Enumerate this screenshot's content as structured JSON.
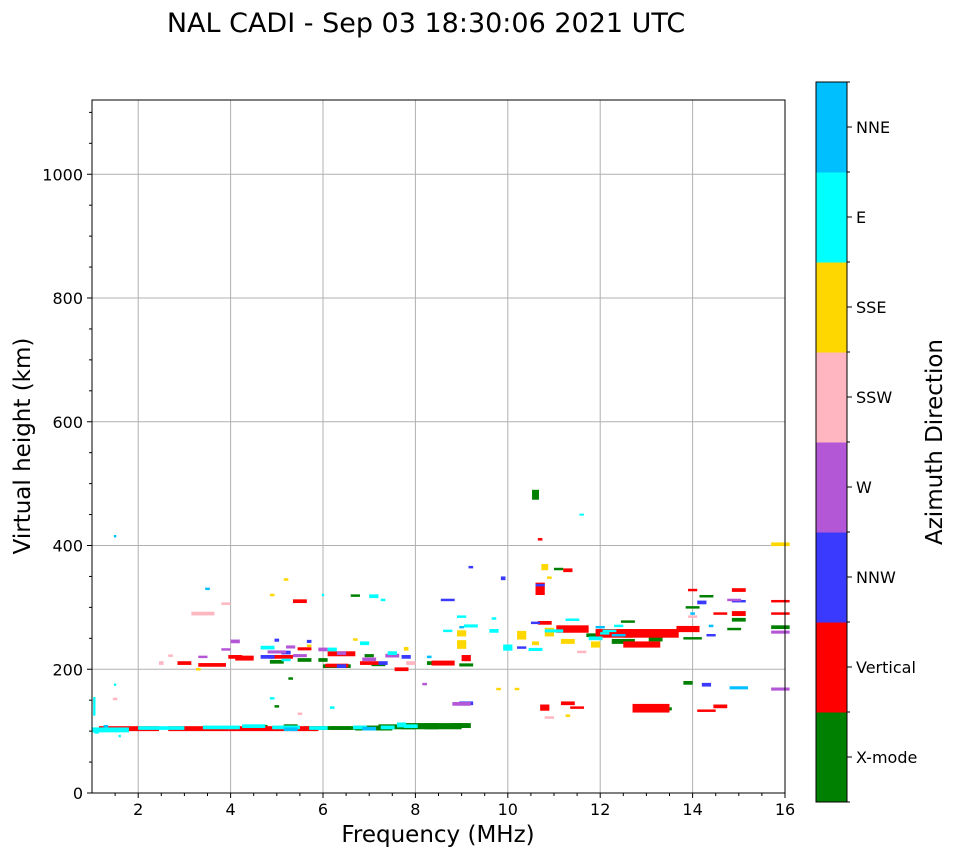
{
  "chart_data": {
    "type": "scatter",
    "title": "NAL CADI - Sep 03 18:30:06 2021 UTC",
    "xlabel": "Frequency (MHz)",
    "ylabel": "Virtual height (km)",
    "xlim": [
      1,
      16
    ],
    "ylim": [
      0,
      1120
    ],
    "xticks": [
      2,
      4,
      6,
      8,
      10,
      12,
      14,
      16
    ],
    "yticks": [
      0,
      200,
      400,
      600,
      800,
      1000
    ],
    "grid": true,
    "colorbar": {
      "label": "Azimuth Direction",
      "categories": [
        "X-mode",
        "Vertical",
        "NNW",
        "W",
        "SSW",
        "SSE",
        "E",
        "NNE"
      ],
      "colors": [
        "#008000",
        "#ff0000",
        "#3a3aff",
        "#b457d6",
        "#ffb6c1",
        "#ffd700",
        "#00ffff",
        "#00bfff"
      ]
    },
    "series": [
      {
        "name": "X-mode",
        "points": [
          [
            6.1,
            105,
            1.0,
            6
          ],
          [
            6.6,
            105,
            0.9,
            6
          ],
          [
            7.1,
            105,
            0.8,
            8
          ],
          [
            7.6,
            107,
            0.8,
            8
          ],
          [
            8.1,
            108,
            0.8,
            10
          ],
          [
            8.6,
            108,
            0.8,
            10
          ],
          [
            9.0,
            109,
            0.4,
            8
          ],
          [
            4.6,
            107,
            0.4,
            6
          ],
          [
            5.3,
            108,
            0.3,
            6
          ],
          [
            5.0,
            212,
            0.3,
            6
          ],
          [
            5.6,
            215,
            0.3,
            6
          ],
          [
            6.3,
            205,
            0.6,
            6
          ],
          [
            7.2,
            208,
            0.3,
            6
          ],
          [
            7.0,
            222,
            0.2,
            5
          ],
          [
            6.0,
            215,
            0.2,
            6
          ],
          [
            6.7,
            319,
            0.2,
            4
          ],
          [
            5.3,
            185,
            0.1,
            4
          ],
          [
            5.0,
            140,
            0.1,
            4
          ],
          [
            10.6,
            482,
            0.15,
            16
          ],
          [
            11.1,
            362,
            0.2,
            4
          ],
          [
            8.5,
            210,
            0.5,
            6
          ],
          [
            9.1,
            207,
            0.3,
            5
          ],
          [
            12.5,
            245,
            0.5,
            8
          ],
          [
            13.2,
            250,
            0.3,
            10
          ],
          [
            13.9,
            178,
            0.2,
            6
          ],
          [
            14.3,
            318,
            0.3,
            4
          ],
          [
            14.0,
            300,
            0.3,
            4
          ],
          [
            15.0,
            280,
            0.3,
            6
          ],
          [
            15.9,
            268,
            0.4,
            6
          ],
          [
            14.0,
            250,
            0.4,
            4
          ],
          [
            14.9,
            265,
            0.3,
            4
          ],
          [
            13.4,
            136,
            0.3,
            5
          ],
          [
            12.6,
            277,
            0.3,
            4
          ],
          [
            11.9,
            255,
            0.4,
            6
          ]
        ]
      },
      {
        "name": "Vertical",
        "points": [
          [
            1.8,
            104,
            1.3,
            8
          ],
          [
            3.3,
            104,
            1.3,
            8
          ],
          [
            4.6,
            104,
            1.3,
            8
          ],
          [
            5.6,
            104,
            0.6,
            8
          ],
          [
            3.6,
            207,
            0.6,
            6
          ],
          [
            4.3,
            218,
            0.4,
            8
          ],
          [
            5.1,
            220,
            0.5,
            6
          ],
          [
            6.4,
            225,
            0.6,
            8
          ],
          [
            7.0,
            210,
            0.4,
            6
          ],
          [
            7.7,
            200,
            0.3,
            6
          ],
          [
            5.6,
            233,
            0.3,
            5
          ],
          [
            8.6,
            210,
            0.5,
            8
          ],
          [
            9.1,
            218,
            0.2,
            10
          ],
          [
            10.7,
            330,
            0.2,
            20
          ],
          [
            10.7,
            410,
            0.1,
            4
          ],
          [
            10.8,
            275,
            0.3,
            6
          ],
          [
            11.3,
            360,
            0.2,
            6
          ],
          [
            11.4,
            265,
            0.7,
            12
          ],
          [
            12.3,
            258,
            0.8,
            14
          ],
          [
            13.1,
            258,
            1.2,
            14
          ],
          [
            12.9,
            240,
            0.8,
            10
          ],
          [
            13.9,
            265,
            0.5,
            10
          ],
          [
            14.0,
            328,
            0.2,
            4
          ],
          [
            14.6,
            290,
            0.3,
            4
          ],
          [
            15.0,
            290,
            0.3,
            8
          ],
          [
            15.0,
            328,
            0.3,
            6
          ],
          [
            15.9,
            310,
            0.4,
            4
          ],
          [
            15.9,
            290,
            0.4,
            4
          ],
          [
            10.8,
            138,
            0.2,
            10
          ],
          [
            11.3,
            145,
            0.3,
            6
          ],
          [
            11.5,
            138,
            0.3,
            4
          ],
          [
            13.1,
            137,
            0.8,
            14
          ],
          [
            14.6,
            140,
            0.3,
            6
          ],
          [
            14.3,
            133,
            0.4,
            4
          ],
          [
            5.5,
            310,
            0.3,
            6
          ],
          [
            6.3,
            206,
            0.5,
            6
          ],
          [
            4.1,
            220,
            0.3,
            6
          ],
          [
            3.0,
            210,
            0.3,
            6
          ]
        ]
      },
      {
        "name": "NNW",
        "points": [
          [
            9.2,
            365,
            0.1,
            4
          ],
          [
            9.9,
            347,
            0.1,
            6
          ],
          [
            10.7,
            336,
            0.2,
            4
          ],
          [
            10.3,
            235,
            0.2,
            4
          ],
          [
            10.6,
            275,
            0.2,
            4
          ],
          [
            11.4,
            280,
            0.2,
            4
          ],
          [
            14.3,
            175,
            0.2,
            6
          ],
          [
            14.2,
            308,
            0.2,
            6
          ],
          [
            15.0,
            310,
            0.3,
            4
          ],
          [
            14.4,
            255,
            0.2,
            4
          ],
          [
            8.7,
            312,
            0.3,
            4
          ],
          [
            9.1,
            145,
            0.3,
            6
          ],
          [
            5.2,
            227,
            0.2,
            6
          ],
          [
            4.8,
            220,
            0.3,
            6
          ],
          [
            7.8,
            220,
            0.2,
            6
          ],
          [
            5.0,
            247,
            0.1,
            5
          ],
          [
            5.7,
            245,
            0.1,
            5
          ],
          [
            7.3,
            210,
            0.2,
            6
          ],
          [
            6.4,
            205,
            0.2,
            6
          ]
        ]
      },
      {
        "name": "W",
        "points": [
          [
            3.4,
            220,
            0.2,
            4
          ],
          [
            3.9,
            232,
            0.2,
            4
          ],
          [
            4.1,
            245,
            0.2,
            6
          ],
          [
            5.0,
            228,
            0.4,
            5
          ],
          [
            5.5,
            222,
            0.3,
            5
          ],
          [
            6.0,
            232,
            0.2,
            6
          ],
          [
            6.4,
            226,
            0.2,
            6
          ],
          [
            7.0,
            216,
            0.3,
            6
          ],
          [
            7.5,
            222,
            0.3,
            6
          ],
          [
            8.2,
            176,
            0.1,
            4
          ],
          [
            9.0,
            144,
            0.4,
            6
          ],
          [
            14.9,
            312,
            0.3,
            4
          ],
          [
            15.9,
            260,
            0.4,
            5
          ],
          [
            15.9,
            168,
            0.4,
            5
          ],
          [
            5.3,
            236,
            0.2,
            5
          ]
        ]
      },
      {
        "name": "SSW",
        "points": [
          [
            3.4,
            290,
            0.5,
            6
          ],
          [
            3.9,
            306,
            0.2,
            4
          ],
          [
            2.5,
            210,
            0.1,
            6
          ],
          [
            2.7,
            222,
            0.1,
            4
          ],
          [
            5.5,
            128,
            0.1,
            4
          ],
          [
            7.9,
            210,
            0.2,
            6
          ],
          [
            10.9,
            122,
            0.2,
            4
          ],
          [
            14.0,
            285,
            0.2,
            4
          ],
          [
            11.6,
            228,
            0.2,
            4
          ],
          [
            1.5,
            152,
            0.1,
            4
          ]
        ]
      },
      {
        "name": "SSE",
        "points": [
          [
            9.0,
            240,
            0.2,
            14
          ],
          [
            9.0,
            258,
            0.2,
            10
          ],
          [
            10.3,
            255,
            0.2,
            14
          ],
          [
            10.9,
            260,
            0.2,
            14
          ],
          [
            10.8,
            365,
            0.15,
            10
          ],
          [
            10.6,
            242,
            0.15,
            6
          ],
          [
            11.3,
            245,
            0.3,
            8
          ],
          [
            11.9,
            240,
            0.2,
            10
          ],
          [
            10.9,
            348,
            0.1,
            4
          ],
          [
            10.2,
            168,
            0.1,
            4
          ],
          [
            9.8,
            168,
            0.1,
            4
          ],
          [
            11.3,
            125,
            0.1,
            4
          ],
          [
            15.9,
            402,
            0.4,
            6
          ],
          [
            5.2,
            345,
            0.1,
            4
          ],
          [
            4.9,
            320,
            0.1,
            4
          ],
          [
            6.7,
            248,
            0.1,
            4
          ],
          [
            7.8,
            233,
            0.1,
            6
          ],
          [
            5.7,
            238,
            0.1,
            4
          ],
          [
            3.3,
            200,
            0.1,
            4
          ]
        ]
      },
      {
        "name": "E",
        "points": [
          [
            1.4,
            102,
            0.8,
            8
          ],
          [
            2.5,
            105,
            1.0,
            6
          ],
          [
            3.8,
            106,
            0.8,
            6
          ],
          [
            4.5,
            108,
            0.5,
            6
          ],
          [
            5.2,
            106,
            0.6,
            6
          ],
          [
            5.9,
            105,
            0.4,
            6
          ],
          [
            6.8,
            106,
            0.3,
            6
          ],
          [
            7.4,
            106,
            0.3,
            6
          ],
          [
            7.7,
            110,
            0.2,
            8
          ],
          [
            7.9,
            108,
            0.3,
            6
          ],
          [
            1.05,
            140,
            0.05,
            30
          ],
          [
            1.1,
            98,
            0.1,
            4
          ],
          [
            1.6,
            92,
            0.05,
            4
          ],
          [
            1.5,
            175,
            0.05,
            4
          ],
          [
            4.8,
            235,
            0.3,
            6
          ],
          [
            5.2,
            215,
            0.2,
            4
          ],
          [
            6.2,
            232,
            0.2,
            6
          ],
          [
            6.9,
            242,
            0.2,
            6
          ],
          [
            7.5,
            226,
            0.2,
            6
          ],
          [
            7.1,
            318,
            0.2,
            6
          ],
          [
            7.3,
            312,
            0.1,
            4
          ],
          [
            6.2,
            138,
            0.1,
            4
          ],
          [
            6.0,
            320,
            0.05,
            4
          ],
          [
            9.2,
            270,
            0.3,
            5
          ],
          [
            9.7,
            262,
            0.2,
            6
          ],
          [
            10.0,
            235,
            0.2,
            10
          ],
          [
            10.6,
            232,
            0.3,
            5
          ],
          [
            11.0,
            262,
            0.4,
            5
          ],
          [
            11.4,
            280,
            0.3,
            4
          ],
          [
            11.9,
            250,
            0.3,
            6
          ],
          [
            12.4,
            270,
            0.2,
            4
          ],
          [
            12.2,
            262,
            0.3,
            4
          ],
          [
            8.7,
            262,
            0.2,
            4
          ],
          [
            9.0,
            285,
            0.2,
            4
          ],
          [
            9.7,
            282,
            0.1,
            4
          ],
          [
            11.6,
            450,
            0.1,
            3
          ],
          [
            12.1,
            258,
            0.2,
            4
          ],
          [
            4.9,
            153,
            0.1,
            4
          ]
        ]
      },
      {
        "name": "NNE",
        "points": [
          [
            1.5,
            415,
            0.05,
            4
          ],
          [
            3.5,
            330,
            0.1,
            4
          ],
          [
            14.4,
            270,
            0.1,
            4
          ],
          [
            15.0,
            170,
            0.4,
            5
          ],
          [
            14.0,
            290,
            0.1,
            4
          ],
          [
            12.4,
            255,
            0.3,
            4
          ],
          [
            12.0,
            268,
            0.2,
            4
          ],
          [
            5.3,
            103,
            0.3,
            6
          ],
          [
            7.0,
            104,
            0.3,
            6
          ],
          [
            1.3,
            108,
            0.1,
            4
          ],
          [
            9.0,
            268,
            0.1,
            4
          ],
          [
            8.3,
            220,
            0.1,
            4
          ]
        ]
      }
    ]
  }
}
